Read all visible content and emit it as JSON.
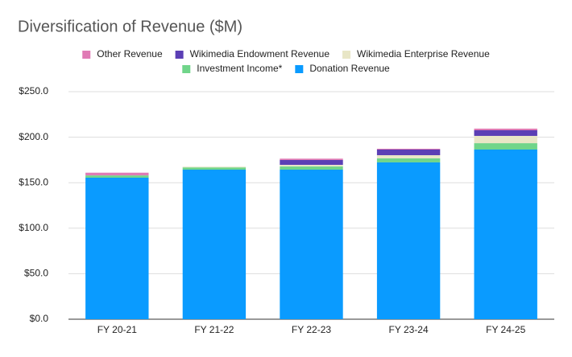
{
  "chart_data": {
    "type": "stacked_bar",
    "title": "Diversification of Revenue ($M)",
    "categories": [
      "FY 20-21",
      "FY 21-22",
      "FY 22-23",
      "FY 23-24",
      "FY 24-25"
    ],
    "series": [
      {
        "name": "Other Revenue",
        "color": "#e07bb5",
        "values": [
          3,
          0,
          1.5,
          0.9,
          1.8
        ]
      },
      {
        "name": "Wikimedia Endowment Revenue",
        "color": "#5b3fb5",
        "values": [
          0,
          0,
          5.3,
          6.2,
          6.2
        ]
      },
      {
        "name": "Wikimedia Enterprise Revenue",
        "color": "#e8e6c6",
        "values": [
          0,
          0.8,
          1.8,
          3.5,
          8
        ]
      },
      {
        "name": "Investment Income*",
        "color": "#70d58a",
        "values": [
          2.5,
          2.5,
          3.5,
          4.4,
          7
        ]
      },
      {
        "name": "Donation Revenue",
        "color": "#0a9bff",
        "values": [
          155.5,
          164.3,
          164.3,
          172.3,
          186.4
        ]
      }
    ],
    "ylim": [
      0,
      250
    ],
    "yticks": [
      {
        "value": 0,
        "label": "$0.0"
      },
      {
        "value": 50,
        "label": "$50.0"
      },
      {
        "value": 100,
        "label": "$100.0"
      },
      {
        "value": 150,
        "label": "$150.0"
      },
      {
        "value": 200,
        "label": "$200.0"
      },
      {
        "value": 250,
        "label": "$250.0"
      }
    ],
    "grid": true
  }
}
